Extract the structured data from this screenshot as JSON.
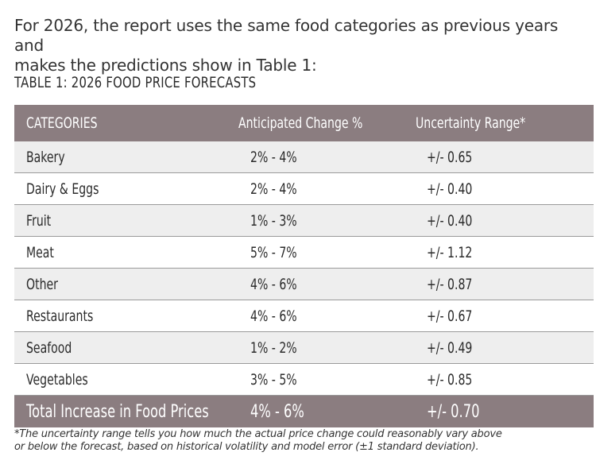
{
  "intro": {
    "line1": "For 2026, the report uses the same food categories as previous years and",
    "line2": "makes the predictions show in Table 1:"
  },
  "table": {
    "title": "TABLE 1: 2026 FOOD PRICE FORECASTS",
    "headers": [
      "CATEGORIES",
      "Anticipated Change %",
      "Uncertainty Range*"
    ],
    "rows": [
      {
        "category": "Bakery",
        "change": "2% - 4%",
        "range": "+/- 0.65"
      },
      {
        "category": "Dairy & Eggs",
        "change": "2% - 4%",
        "range": "+/- 0.40"
      },
      {
        "category": "Fruit",
        "change": "1% - 3%",
        "range": "+/- 0.40"
      },
      {
        "category": "Meat",
        "change": "5% - 7%",
        "range": "+/- 1.12"
      },
      {
        "category": "Other",
        "change": "4% - 6%",
        "range": "+/- 0.87"
      },
      {
        "category": "Restaurants",
        "change": "4% - 6%",
        "range": "+/- 0.67"
      },
      {
        "category": "Seafood",
        "change": "1% - 2%",
        "range": "+/- 0.49"
      },
      {
        "category": "Vegetables",
        "change": "3% - 5%",
        "range": "+/- 0.85"
      }
    ],
    "total": {
      "category": "Total Increase in Food Prices",
      "change": "4% - 6%",
      "range": "+/- 0.70"
    }
  },
  "footnote": {
    "line1": "*The uncertainty range tells you how much the actual price change could reasonably vary above",
    "line2": "or below the forecast, based on historical volatility and model error (±1 standard deviation)."
  },
  "colors": {
    "header_bg": "#8b7d80",
    "alt_row_bg": "#eeeeee"
  }
}
